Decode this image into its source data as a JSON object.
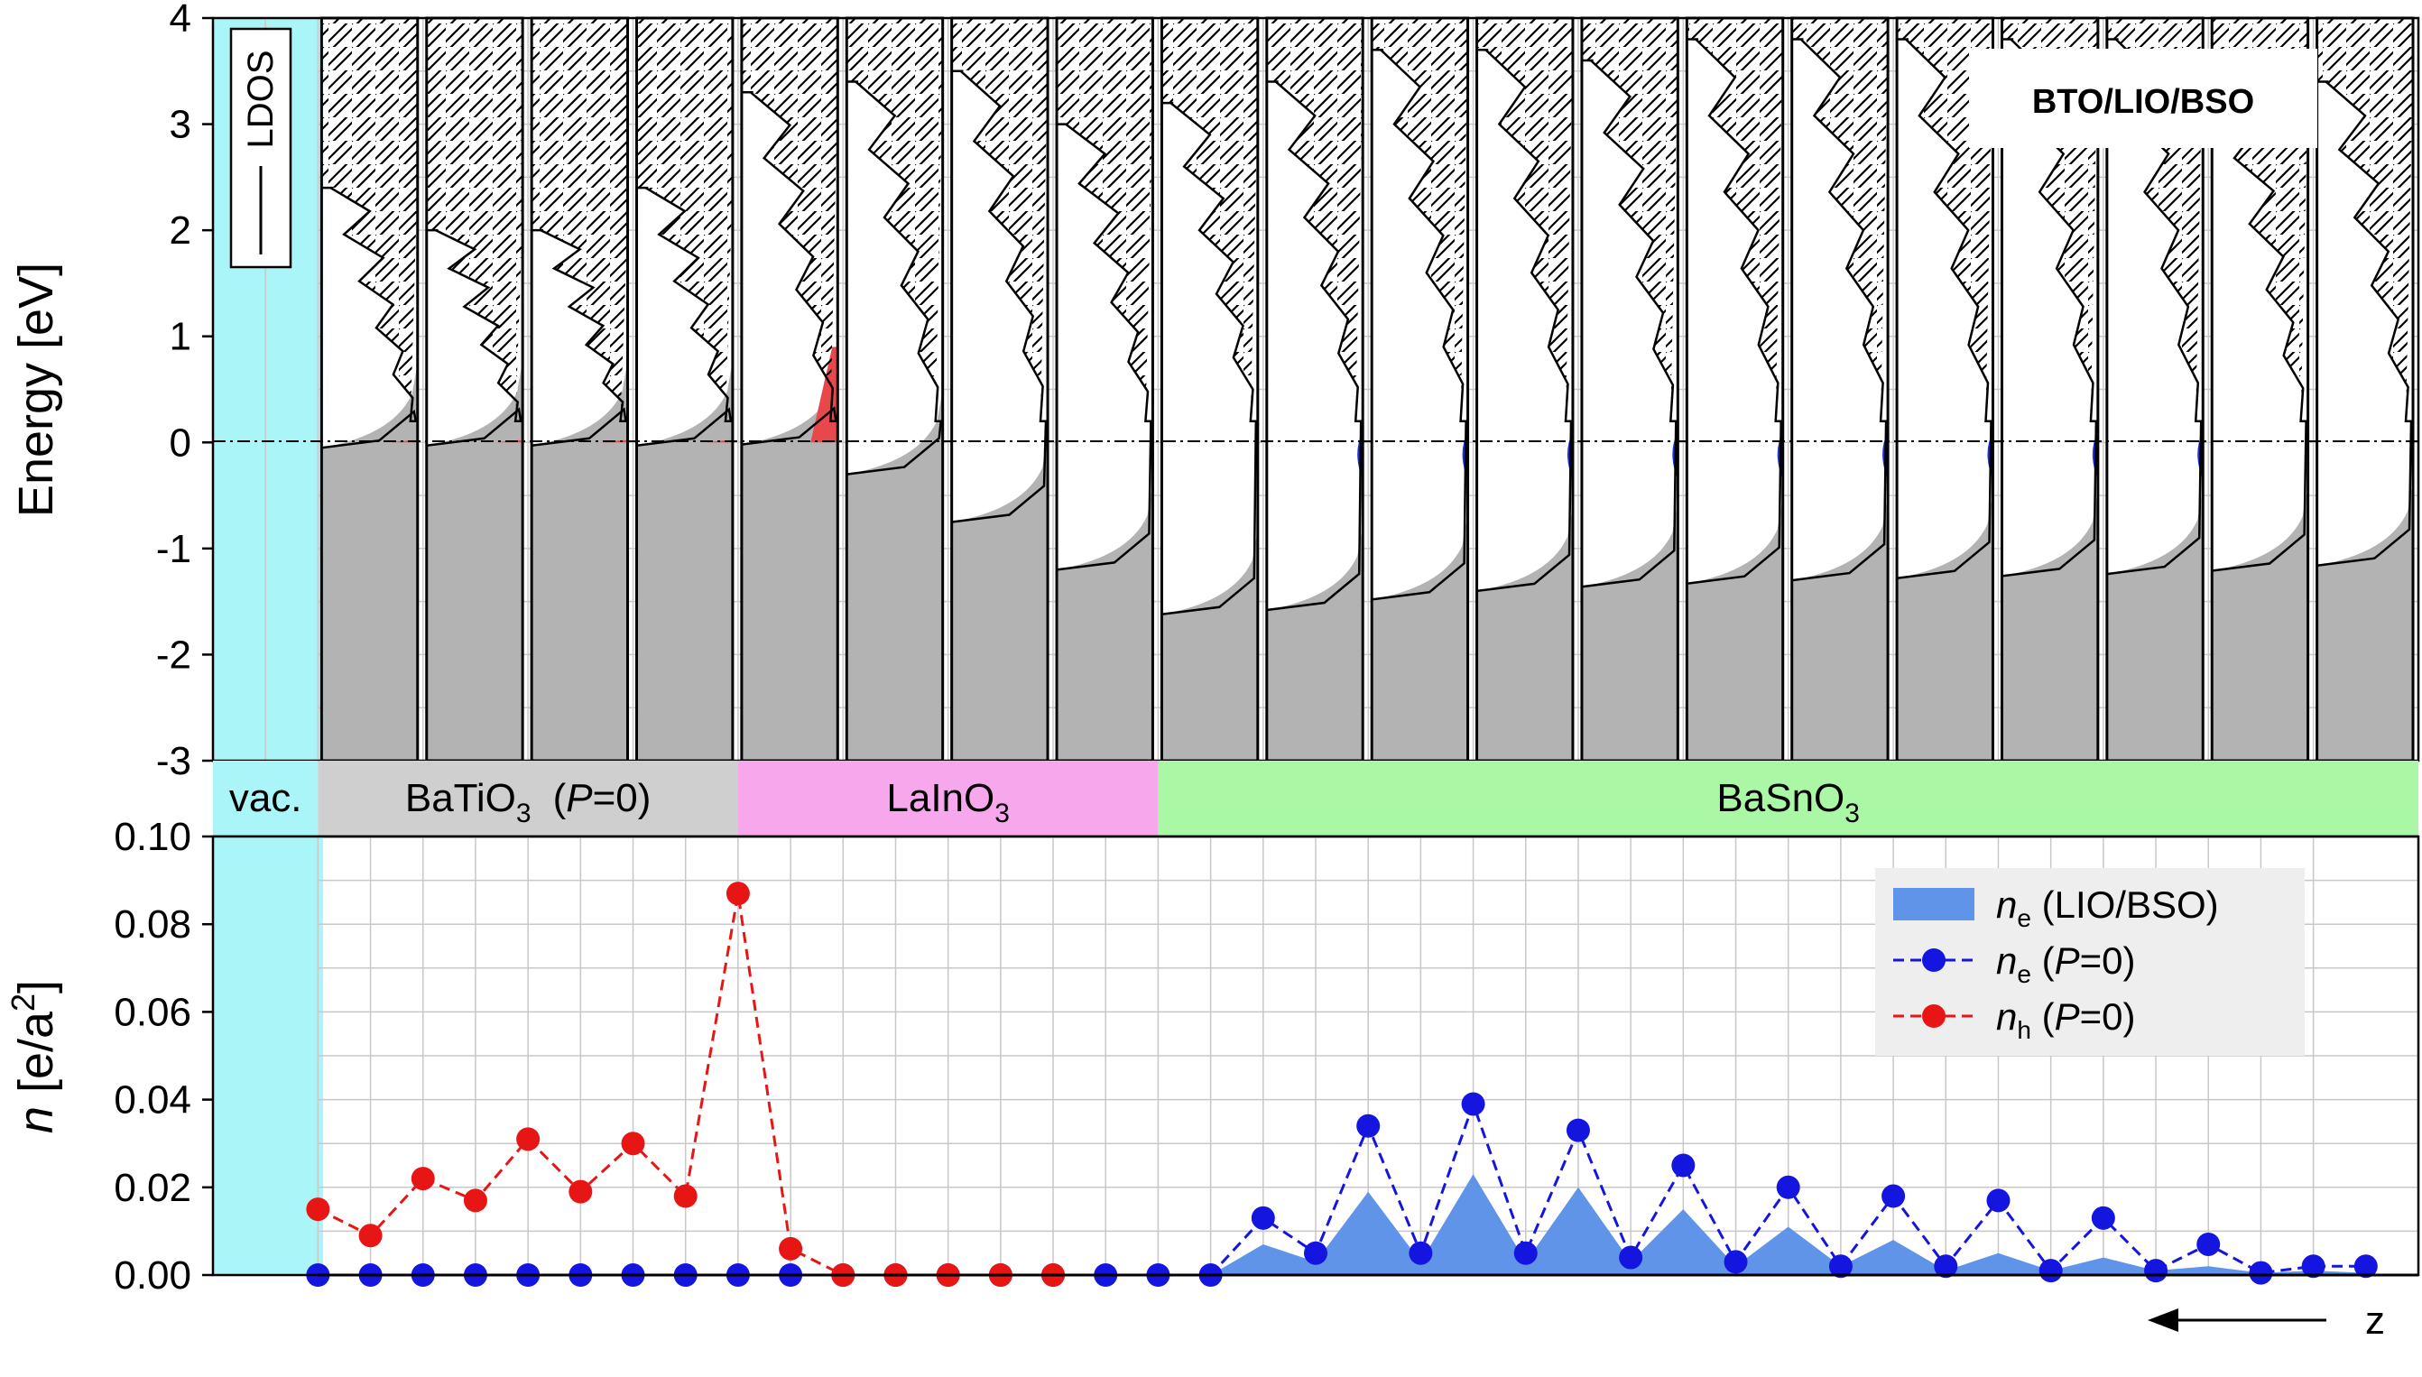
{
  "chart_data": [
    {
      "type": "area",
      "panel": "ldos",
      "ylabel": "Energy [eV]",
      "ylim": [
        -3,
        4
      ],
      "yticks": [
        {
          "v": 4,
          "label": "4"
        },
        {
          "v": 3,
          "label": "3"
        },
        {
          "v": 2,
          "label": "2"
        },
        {
          "v": 1,
          "label": "1"
        },
        {
          "v": 0,
          "label": "0"
        },
        {
          "v": -1,
          "label": "-1"
        },
        {
          "v": -2,
          "label": "-2"
        },
        {
          "v": -3,
          "label": "-3"
        }
      ],
      "legend": {
        "label": "LDOS",
        "placement": "top-left"
      },
      "annotation": "BTO/LIO/BSO",
      "fermi_level": 0,
      "layers": [
        {
          "material": "BaTiO3",
          "vbm": -0.05,
          "cbm": 2.4,
          "hole_fill_top": 0.02
        },
        {
          "material": "BaTiO3",
          "vbm": -0.03,
          "cbm": 2.0,
          "hole_fill_top": 0.02
        },
        {
          "material": "BaTiO3",
          "vbm": -0.03,
          "cbm": 2.0,
          "hole_fill_top": 0.02
        },
        {
          "material": "BaTiO3",
          "vbm": -0.03,
          "cbm": 2.4,
          "hole_fill_top": 0.02
        },
        {
          "material": "LaInO3",
          "vbm": -0.02,
          "cbm": 3.3,
          "hole_fill_top": 0.9
        },
        {
          "material": "LaInO3",
          "vbm": -0.3,
          "cbm": 3.4,
          "hole_fill_top": null
        },
        {
          "material": "LaInO3",
          "vbm": -0.75,
          "cbm": 3.5,
          "hole_fill_top": null
        },
        {
          "material": "LaInO3",
          "vbm": -1.2,
          "cbm": 3.0,
          "hole_fill_top": null
        },
        {
          "material": "BaSnO3",
          "vbm": -1.62,
          "cbm": 3.2,
          "hole_fill_top": null
        },
        {
          "material": "BaSnO3",
          "vbm": -1.58,
          "cbm": 3.4,
          "hole_fill_top": null
        },
        {
          "material": "BaSnO3",
          "vbm": -1.48,
          "cbm": 3.7,
          "hole_fill_top": null
        },
        {
          "material": "BaSnO3",
          "vbm": -1.4,
          "cbm": 3.7,
          "hole_fill_top": null
        },
        {
          "material": "BaSnO3",
          "vbm": -1.36,
          "cbm": 3.6,
          "hole_fill_top": null
        },
        {
          "material": "BaSnO3",
          "vbm": -1.33,
          "cbm": 3.8,
          "hole_fill_top": null
        },
        {
          "material": "BaSnO3",
          "vbm": -1.3,
          "cbm": 3.8,
          "hole_fill_top": null
        },
        {
          "material": "BaSnO3",
          "vbm": -1.28,
          "cbm": 3.8,
          "hole_fill_top": null
        },
        {
          "material": "BaSnO3",
          "vbm": -1.26,
          "cbm": 3.8,
          "hole_fill_top": null
        },
        {
          "material": "BaSnO3",
          "vbm": -1.24,
          "cbm": 3.8,
          "hole_fill_top": null
        },
        {
          "material": "BaSnO3",
          "vbm": -1.21,
          "cbm": 3.3,
          "hole_fill_top": null
        },
        {
          "material": "BaSnO3",
          "vbm": -1.16,
          "cbm": 3.4,
          "hole_fill_top": null
        }
      ]
    },
    {
      "type": "line",
      "panel": "density",
      "ylabel": "n [e/a²]",
      "ylim": [
        0,
        0.1
      ],
      "yticks": [
        {
          "v": 0.1,
          "label": "0.10"
        },
        {
          "v": 0.08,
          "label": "0.08"
        },
        {
          "v": 0.06,
          "label": "0.06"
        },
        {
          "v": 0.04,
          "label": "0.04"
        },
        {
          "v": 0.02,
          "label": "0.02"
        },
        {
          "v": 0.0,
          "label": "0.00"
        }
      ],
      "xlabel": "z",
      "x_positions": [
        0.5,
        1.0,
        1.5,
        2.0,
        2.5,
        3.0,
        3.5,
        4.0,
        4.5,
        5.0,
        5.5,
        6.0,
        6.5,
        7.0,
        7.5,
        8.0,
        8.5,
        9.0,
        9.5,
        10.0,
        10.5,
        11.0,
        11.5,
        12.0,
        12.5,
        13.0,
        13.5,
        14.0,
        14.5,
        15.0,
        15.5,
        16.0,
        16.5,
        17.0,
        17.5,
        18.0,
        18.5,
        19.0,
        19.5,
        20.0
      ],
      "series": [
        {
          "name": "ne (LIO/BSO)",
          "style": "filled",
          "values": [
            0,
            0,
            0,
            0,
            0,
            0,
            0,
            0,
            0,
            0,
            0,
            0,
            0,
            0,
            0,
            0,
            0,
            0,
            0.007,
            0.003,
            0.019,
            0.003,
            0.023,
            0.003,
            0.02,
            0.003,
            0.015,
            0.002,
            0.011,
            0.002,
            0.008,
            0.001,
            0.005,
            0.001,
            0.004,
            0.001,
            0.002,
            0.0005,
            0.001,
            0.0005
          ]
        },
        {
          "name": "ne (P=0)",
          "style": "dashed-markers",
          "values": [
            0,
            0,
            0,
            0,
            0,
            0,
            0,
            0,
            0,
            0,
            0,
            0,
            0,
            0,
            0,
            0,
            0,
            0,
            0.013,
            0.005,
            0.034,
            0.005,
            0.039,
            0.005,
            0.033,
            0.004,
            0.025,
            0.003,
            0.02,
            0.002,
            0.018,
            0.002,
            0.017,
            0.001,
            0.013,
            0.001,
            0.007,
            0.0005,
            0.002,
            0.002
          ]
        },
        {
          "name": "nh (P=0)",
          "style": "dashed-markers",
          "x_positions": [
            0.5,
            1.0,
            1.5,
            2.0,
            2.5,
            3.0,
            3.5,
            4.0,
            4.5,
            5.0,
            5.5,
            6.0,
            6.5,
            7.0,
            7.5
          ],
          "values": [
            0.015,
            0.009,
            0.022,
            0.017,
            0.031,
            0.019,
            0.03,
            0.018,
            0.087,
            0.006,
            0.0,
            0.0,
            0.0,
            0.0,
            0.0
          ]
        }
      ]
    }
  ],
  "regions": [
    {
      "label": "vac.",
      "sub": "",
      "extra": "",
      "color": "#aaf5f8"
    },
    {
      "label": "BaTiO",
      "sub": "3",
      "extra": "(P=0)",
      "color": "#cfcfcf"
    },
    {
      "label": "LaInO",
      "sub": "3",
      "extra": "",
      "color": "#f7a8ec"
    },
    {
      "label": "BaSnO",
      "sub": "3",
      "extra": "",
      "color": "#aaf7a6"
    }
  ],
  "colors": {
    "vacuum": "#aaf5f8",
    "valence_fill": "#b3b3b3",
    "hole_fill": "#e8474b",
    "electron_fill": "#1d2fd9",
    "ne_area": "#5f94e8",
    "ne_line": "#1515e0",
    "nh_line": "#e81515",
    "grid": "#c8c8c8",
    "legend_bg": "#eeeeee"
  }
}
